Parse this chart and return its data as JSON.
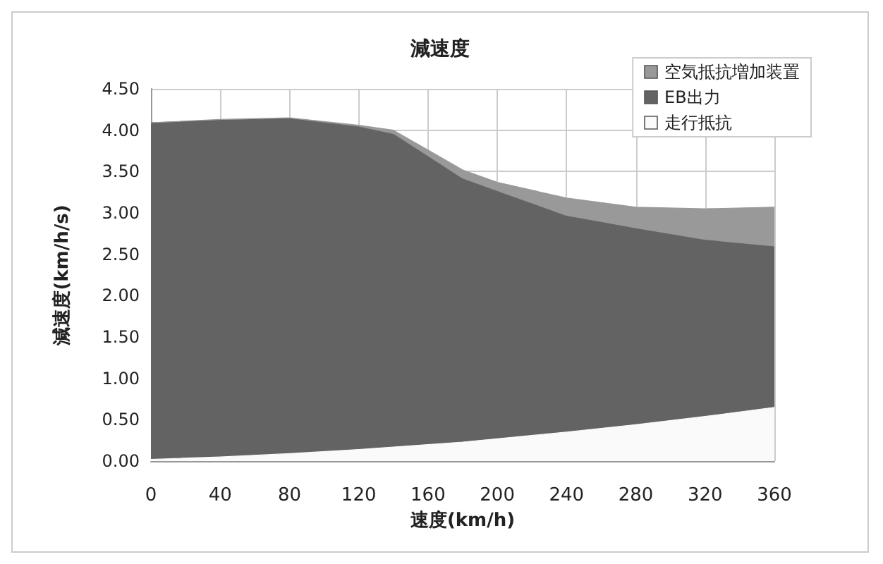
{
  "chart_data": {
    "type": "area",
    "title": "減速度",
    "xlabel": "速度(km/h)",
    "ylabel": "減速度(km/h/s)",
    "stacked": true,
    "x": [
      0,
      40,
      80,
      120,
      140,
      160,
      180,
      200,
      240,
      280,
      320,
      360
    ],
    "series": [
      {
        "name": "走行抵抗",
        "color": "#fafafa",
        "values": [
          0.02,
          0.05,
          0.09,
          0.14,
          0.17,
          0.2,
          0.23,
          0.27,
          0.35,
          0.44,
          0.54,
          0.65
        ]
      },
      {
        "name": "EB出力",
        "color": "#636363",
        "values": [
          4.07,
          4.07,
          4.05,
          3.9,
          3.78,
          3.48,
          3.18,
          2.99,
          2.61,
          2.37,
          2.13,
          1.94
        ]
      },
      {
        "name": "空気抵抗増加装置",
        "color": "#999999",
        "values": [
          0,
          0.01,
          0.01,
          0.02,
          0.05,
          0.08,
          0.11,
          0.11,
          0.22,
          0.26,
          0.38,
          0.48
        ]
      }
    ],
    "xlim": [
      0,
      360
    ],
    "xticks": [
      0,
      40,
      80,
      120,
      160,
      200,
      240,
      280,
      320,
      360
    ],
    "ylim": [
      0,
      4.5
    ],
    "yticks": [
      {
        "value": 0,
        "label": "0.00"
      },
      {
        "value": 0.5,
        "label": "0.50"
      },
      {
        "value": 1,
        "label": "1.00"
      },
      {
        "value": 1.5,
        "label": "1.50"
      },
      {
        "value": 2,
        "label": "2.00"
      },
      {
        "value": 2.5,
        "label": "2.50"
      },
      {
        "value": 3,
        "label": "3.00"
      },
      {
        "value": 3.5,
        "label": "3.50"
      },
      {
        "value": 4,
        "label": "4.00"
      },
      {
        "value": 4.5,
        "label": "4.50"
      }
    ],
    "grid": true,
    "legend": "top right"
  }
}
